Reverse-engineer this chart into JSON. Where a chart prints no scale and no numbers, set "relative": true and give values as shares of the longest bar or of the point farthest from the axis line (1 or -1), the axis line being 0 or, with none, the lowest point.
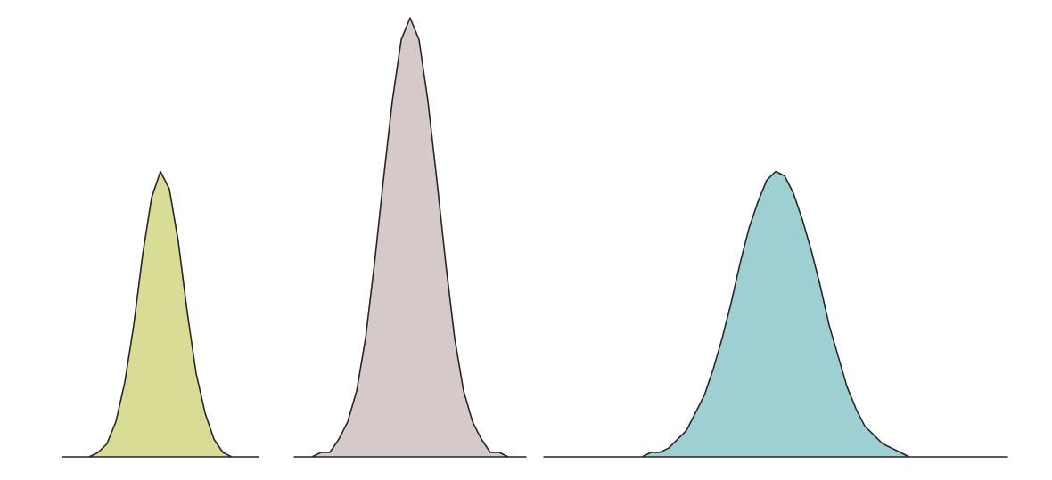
{
  "chart_data": {
    "type": "area",
    "relative": true,
    "categories": [
      null,
      null,
      null,
      null,
      null,
      null,
      null,
      null,
      null,
      null,
      null,
      null,
      null,
      null,
      null,
      null,
      null,
      null,
      null,
      null,
      null,
      null,
      null,
      null,
      null,
      null,
      null,
      null,
      null,
      null,
      null,
      null,
      null,
      null,
      null,
      null,
      null,
      null,
      null,
      null,
      null,
      null,
      null,
      null,
      null,
      null,
      null,
      null,
      null,
      null,
      null,
      null,
      null,
      null,
      null,
      null,
      null,
      null,
      null,
      null,
      null,
      null,
      null,
      null,
      null,
      null,
      null,
      null,
      null,
      null,
      null,
      null,
      null,
      null,
      null,
      null,
      null,
      null,
      null,
      null,
      null,
      null,
      null,
      null,
      null,
      null,
      null,
      null,
      null,
      null,
      null,
      null,
      null,
      null,
      null,
      null,
      null,
      null,
      null,
      null,
      null,
      null,
      null,
      null,
      null,
      null,
      null
    ],
    "series": [
      {
        "color": "#d9dc94",
        "values": [
          0,
          0,
          0,
          0,
          0.01,
          0.03,
          0.08,
          0.17,
          0.3,
          0.46,
          0.59,
          0.65,
          0.61,
          0.49,
          0.33,
          0.19,
          0.1,
          0.04,
          0.01,
          0,
          0,
          0,
          0,
          null,
          null,
          null,
          null,
          null,
          null,
          null,
          null,
          null,
          null,
          null,
          null,
          null,
          null,
          null,
          null,
          null,
          null,
          null,
          null,
          null,
          null,
          null,
          null,
          null,
          null,
          null,
          null,
          null,
          null,
          null,
          null,
          null,
          null,
          null,
          null,
          null,
          null,
          null,
          null,
          null,
          null,
          null,
          null,
          null,
          null,
          null,
          null,
          null,
          null,
          null,
          null,
          null,
          null,
          null,
          null,
          null,
          null,
          null,
          null,
          null,
          null,
          null,
          null,
          null,
          null,
          null,
          null,
          null,
          null,
          null,
          null,
          null,
          null,
          null,
          null,
          null,
          null,
          null,
          null,
          null,
          null,
          null,
          null
        ]
      },
      {
        "color": "#d6c9c9",
        "values": [
          null,
          null,
          null,
          null,
          null,
          null,
          null,
          null,
          null,
          null,
          null,
          null,
          null,
          null,
          null,
          null,
          null,
          null,
          null,
          null,
          null,
          null,
          null,
          null,
          null,
          null,
          0,
          0,
          0,
          0.01,
          0.01,
          0.04,
          0.08,
          0.15,
          0.27,
          0.44,
          0.63,
          0.81,
          0.95,
          1,
          0.95,
          0.81,
          0.63,
          0.44,
          0.27,
          0.15,
          0.08,
          0.04,
          0.01,
          0.01,
          0,
          0,
          0,
          null,
          null,
          null,
          null,
          null,
          null,
          null,
          null,
          null,
          null,
          null,
          null,
          null,
          null,
          null,
          null,
          null,
          null,
          null,
          null,
          null,
          null,
          null,
          null,
          null,
          null,
          null,
          null,
          null,
          null,
          null,
          null,
          null,
          null,
          null,
          null,
          null,
          null,
          null,
          null,
          null,
          null,
          null,
          null,
          null,
          null,
          null,
          null,
          null,
          null,
          null,
          null,
          null,
          null
        ]
      },
      {
        "color": "#9ecfd2",
        "values": [
          null,
          null,
          null,
          null,
          null,
          null,
          null,
          null,
          null,
          null,
          null,
          null,
          null,
          null,
          null,
          null,
          null,
          null,
          null,
          null,
          null,
          null,
          null,
          null,
          null,
          null,
          null,
          null,
          null,
          null,
          null,
          null,
          null,
          null,
          null,
          null,
          null,
          null,
          null,
          null,
          null,
          null,
          null,
          null,
          null,
          null,
          null,
          null,
          null,
          null,
          null,
          null,
          null,
          null,
          0,
          0,
          0,
          0,
          0,
          0,
          0,
          0,
          0,
          0,
          0,
          0,
          0.01,
          0.01,
          0.02,
          0.04,
          0.06,
          0.1,
          0.14,
          0.2,
          0.27,
          0.35,
          0.44,
          0.52,
          0.58,
          0.63,
          0.65,
          0.64,
          0.6,
          0.54,
          0.47,
          0.39,
          0.3,
          0.23,
          0.16,
          0.11,
          0.07,
          0.05,
          0.03,
          0.02,
          0.01,
          0,
          0,
          0,
          0,
          0,
          0,
          0,
          0,
          0,
          0,
          0,
          0
        ]
      }
    ]
  }
}
